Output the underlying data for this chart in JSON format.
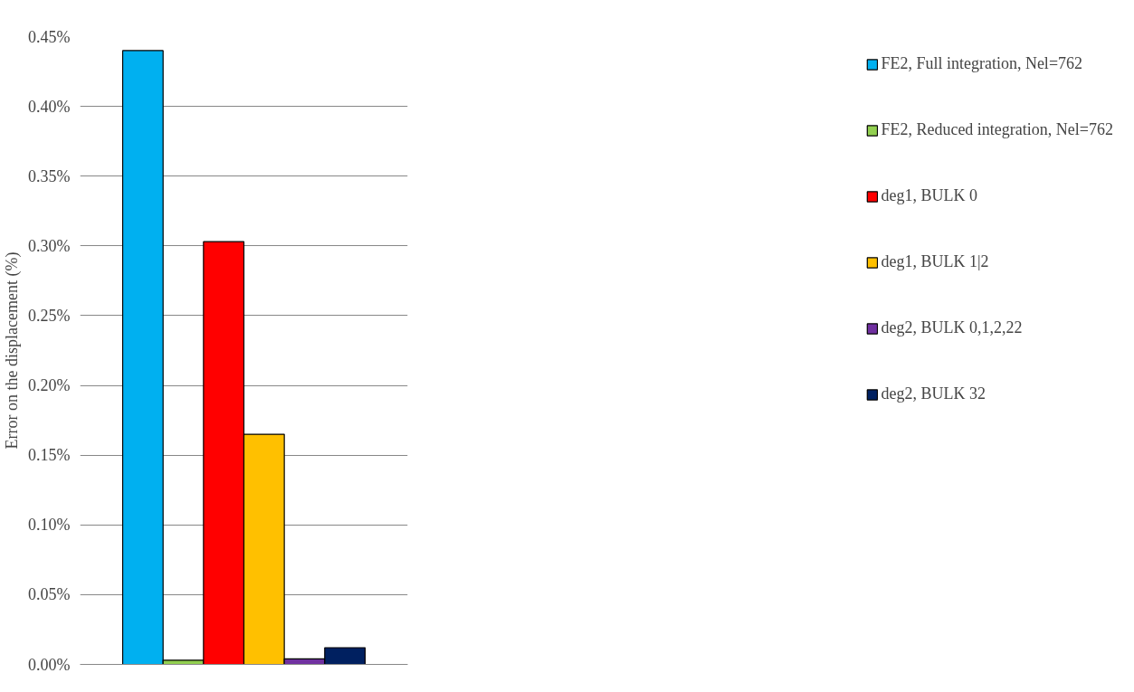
{
  "chart_data": {
    "type": "bar",
    "ylabel": "Error on the displacement (%)",
    "categories": [
      null
    ],
    "series": [
      {
        "name": "FE2, Full integration, Nel=762",
        "color": "#00b0f0",
        "values": [
          0.44
        ]
      },
      {
        "name": "FE2, Reduced integration, Nel=762",
        "color": "#92d050",
        "values": [
          0.003
        ]
      },
      {
        "name": "deg1, BULK 0",
        "color": "#ff0000",
        "values": [
          0.303
        ]
      },
      {
        "name": "deg1, BULK 1|2",
        "color": "#ffc000",
        "values": [
          0.165
        ]
      },
      {
        "name": "deg2, BULK 0,1,2,22",
        "color": "#7030a0",
        "values": [
          0.004
        ]
      },
      {
        "name": "deg2, BULK 32",
        "color": "#002060",
        "values": [
          0.012
        ]
      }
    ],
    "ylim": [
      0,
      0.45
    ],
    "yticks": [
      {
        "value": 0,
        "label": "0.00%"
      },
      {
        "value": 0.05,
        "label": "0.05%"
      },
      {
        "value": 0.1,
        "label": "0.10%"
      },
      {
        "value": 0.15,
        "label": "0.15%"
      },
      {
        "value": 0.2,
        "label": "0.20%"
      },
      {
        "value": 0.25,
        "label": "0.25%"
      },
      {
        "value": 0.3,
        "label": "0.30%"
      },
      {
        "value": 0.35,
        "label": "0.35%"
      },
      {
        "value": 0.4,
        "label": "0.40%"
      },
      {
        "value": 0.45,
        "label": "0.45%"
      }
    ],
    "grid": "y",
    "legend": "right"
  }
}
